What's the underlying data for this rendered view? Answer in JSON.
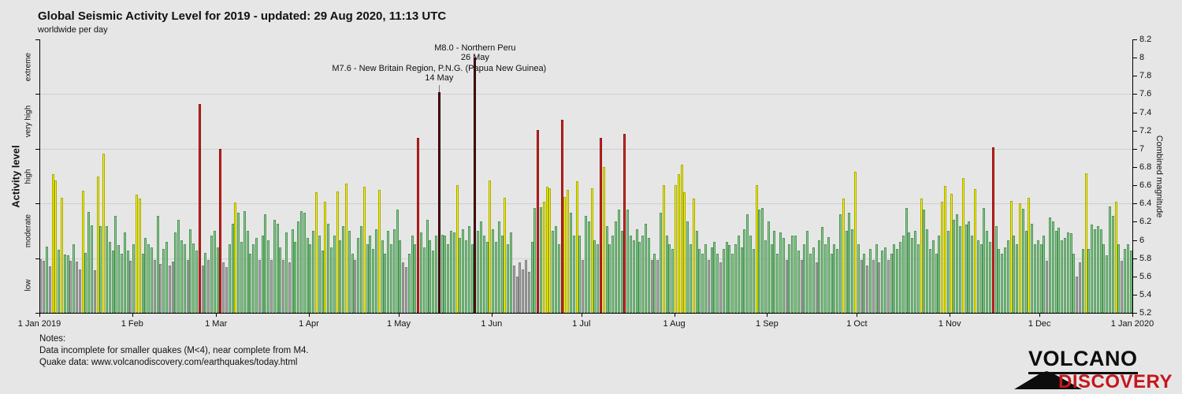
{
  "header": {
    "title": "Global Seismic Activity Level for 2019 - updated: 29 Aug 2020, 11:13 UTC",
    "subtitle": "worldwide per day"
  },
  "notes": {
    "heading": "Notes:",
    "line1": "Data incomplete for smaller quakes (M<4), near complete from M4.",
    "line2": "Quake data: www.volcanodiscovery.com/earthquakes/today.html"
  },
  "logo": {
    "line1": "VOLCANO",
    "line2": "DISCOVERY",
    "accent_color": "#c5161d"
  },
  "annotations": [
    {
      "line1": "M8.0 - Northern Peru",
      "line2": "26 May",
      "day_index": 145,
      "magnitude": 8.0
    },
    {
      "line1": "M7.6 - New Britain Region, P.N.G. (Papua New Guinea)",
      "line2": "14 May",
      "day_index": 133,
      "magnitude": 7.62
    }
  ],
  "chart_data": {
    "type": "bar",
    "title": "Global Seismic Activity Level for 2019",
    "subtitle": "worldwide per day",
    "x_axis": {
      "month_labels": [
        "1 Jan 2019",
        "1 Feb",
        "1 Mar",
        "1 Apr",
        "1 May",
        "1 Jun",
        "1 Jul",
        "1 Aug",
        "1 Sep",
        "1 Oct",
        "1 Nov",
        "1 Dec",
        "1 Jan 2020"
      ],
      "month_day_offsets": [
        0,
        31,
        59,
        90,
        120,
        151,
        181,
        212,
        243,
        273,
        304,
        334,
        365
      ],
      "days_total": 365
    },
    "y_right": {
      "label": "Combined magnitude",
      "min": 5.2,
      "max": 8.2,
      "tick_step": 0.2
    },
    "y_left": {
      "label": "Activity level",
      "levels": [
        {
          "name": "low",
          "min": 5.2,
          "max": 5.8
        },
        {
          "name": "moderate",
          "min": 5.8,
          "max": 6.4
        },
        {
          "name": "high",
          "min": 6.4,
          "max": 7.0
        },
        {
          "name": "very high",
          "min": 7.0,
          "max": 7.6
        },
        {
          "name": "extreme",
          "min": 7.6,
          "max": 8.2
        }
      ]
    },
    "gridlines_at": [
      7.6,
      7.0,
      6.4,
      5.8
    ],
    "level_fill_colors": {
      "low": "#ababab",
      "moderate": "#8fce8f",
      "high": "#f7f70a",
      "very high": "#d42a1e",
      "extreme": "#5c1414"
    },
    "level_border_colors": {
      "low": "#7d7d7d",
      "moderate": "#4e9458",
      "high": "#a8a800",
      "very high": "#8f1010",
      "extreme": "#2b0505"
    },
    "values": [
      5.79,
      5.77,
      5.93,
      5.71,
      6.72,
      6.65,
      5.89,
      6.46,
      5.84,
      5.83,
      5.77,
      5.95,
      5.76,
      5.68,
      6.54,
      5.86,
      6.31,
      6.16,
      5.67,
      6.7,
      6.15,
      6.95,
      6.15,
      5.98,
      5.88,
      6.26,
      5.94,
      5.85,
      6.08,
      5.88,
      5.77,
      5.95,
      6.5,
      6.45,
      5.85,
      6.02,
      5.95,
      5.92,
      5.78,
      6.26,
      5.74,
      5.9,
      5.98,
      5.72,
      5.76,
      6.08,
      6.22,
      6.0,
      5.95,
      5.78,
      6.12,
      5.96,
      5.88,
      7.49,
      5.72,
      5.86,
      5.78,
      6.05,
      6.1,
      5.92,
      7.0,
      5.75,
      5.7,
      5.95,
      6.18,
      6.41,
      6.3,
      5.98,
      6.32,
      6.1,
      5.85,
      5.95,
      6.02,
      5.78,
      6.05,
      6.28,
      6.0,
      5.78,
      6.22,
      6.18,
      5.92,
      5.78,
      6.08,
      5.75,
      6.12,
      5.98,
      6.2,
      6.32,
      6.3,
      6.02,
      5.95,
      6.1,
      6.52,
      6.05,
      5.88,
      6.42,
      6.18,
      5.92,
      6.05,
      6.53,
      6.0,
      6.15,
      6.62,
      6.1,
      5.85,
      5.78,
      6.02,
      6.15,
      6.58,
      5.95,
      6.05,
      5.9,
      6.12,
      6.55,
      6.0,
      5.85,
      6.1,
      5.95,
      6.12,
      6.33,
      6.0,
      5.75,
      5.7,
      5.85,
      6.05,
      5.95,
      7.12,
      6.08,
      5.92,
      6.22,
      6.0,
      5.88,
      6.05,
      7.62,
      6.06,
      6.05,
      5.95,
      6.1,
      6.08,
      6.6,
      6.02,
      6.12,
      6.0,
      6.15,
      5.95,
      8.0,
      6.1,
      6.2,
      6.05,
      5.98,
      6.65,
      6.12,
      5.98,
      6.2,
      6.05,
      6.46,
      5.95,
      6.08,
      5.72,
      5.6,
      5.75,
      5.68,
      5.78,
      5.65,
      5.98,
      6.35,
      7.21,
      6.36,
      6.42,
      6.58,
      6.57,
      6.1,
      6.15,
      5.95,
      7.32,
      6.47,
      6.55,
      6.3,
      6.05,
      6.64,
      6.05,
      5.78,
      6.26,
      6.2,
      6.57,
      6.0,
      5.95,
      7.12,
      6.8,
      6.15,
      5.95,
      6.05,
      6.2,
      6.33,
      6.1,
      7.16,
      6.33,
      6.05,
      6.0,
      6.12,
      5.98,
      6.05,
      6.18,
      6.02,
      5.78,
      5.85,
      5.78,
      6.3,
      6.6,
      6.05,
      5.95,
      5.9,
      6.6,
      6.72,
      6.83,
      6.52,
      6.2,
      5.95,
      6.45,
      6.1,
      5.9,
      5.85,
      5.95,
      5.78,
      5.92,
      5.98,
      5.85,
      5.75,
      5.9,
      5.98,
      5.94,
      5.85,
      5.95,
      6.05,
      5.92,
      6.12,
      6.28,
      6.05,
      5.9,
      6.6,
      6.33,
      6.35,
      6.0,
      6.2,
      5.95,
      6.1,
      5.85,
      6.08,
      6.02,
      5.78,
      5.95,
      6.05,
      6.05,
      5.88,
      5.78,
      5.95,
      6.1,
      5.85,
      5.92,
      5.75,
      6.0,
      6.14,
      5.95,
      6.03,
      5.85,
      5.95,
      5.9,
      6.28,
      6.45,
      6.1,
      6.3,
      6.12,
      6.75,
      5.95,
      5.78,
      5.85,
      5.72,
      5.9,
      5.78,
      5.95,
      5.75,
      5.88,
      5.92,
      5.78,
      5.85,
      5.95,
      5.9,
      5.98,
      6.05,
      6.35,
      6.08,
      6.02,
      6.1,
      5.95,
      6.45,
      6.33,
      6.12,
      5.9,
      6.0,
      5.85,
      6.05,
      6.42,
      6.59,
      6.1,
      6.51,
      6.22,
      6.28,
      6.15,
      6.68,
      6.17,
      6.2,
      6.05,
      6.56,
      6.0,
      5.95,
      6.35,
      6.1,
      5.98,
      7.02,
      6.15,
      5.9,
      5.85,
      5.92,
      6.0,
      6.43,
      6.05,
      5.95,
      6.4,
      6.34,
      6.1,
      6.46,
      6.18,
      5.95,
      6.0,
      5.95,
      6.05,
      5.77,
      6.25,
      6.2,
      6.1,
      6.13,
      6.0,
      6.02,
      6.08,
      6.07,
      5.85,
      5.6,
      5.75,
      5.9,
      6.73,
      5.9,
      6.17,
      6.12,
      6.15,
      6.12,
      5.95,
      5.83,
      6.37,
      6.26,
      6.42,
      5.95,
      5.77,
      5.9,
      5.95,
      5.88
    ]
  }
}
